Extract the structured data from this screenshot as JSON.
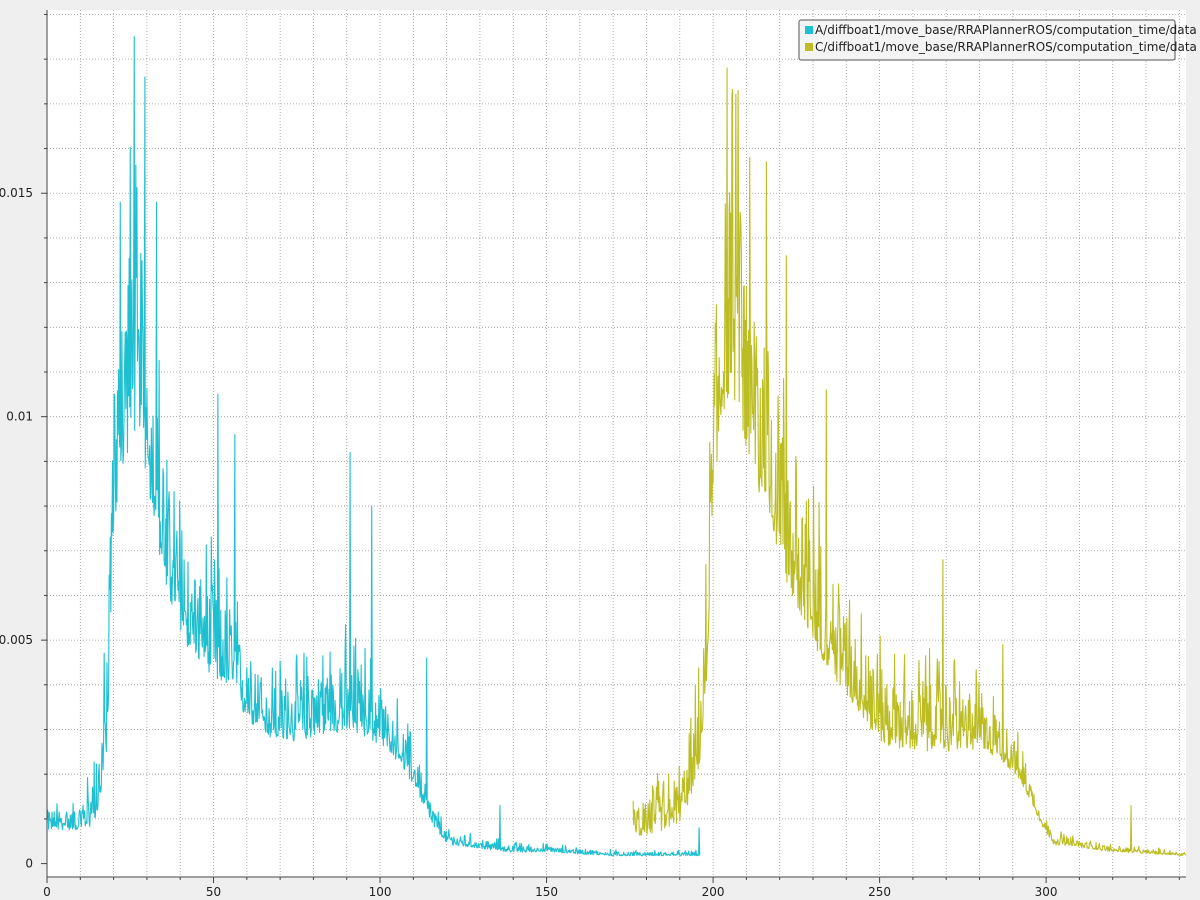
{
  "chart_data": {
    "type": "line",
    "title": "",
    "xlabel": "",
    "ylabel": "",
    "xlim": [
      0,
      342
    ],
    "ylim": [
      -0.0003,
      0.0191
    ],
    "grid": true,
    "legend_position": "top-right",
    "x_ticks": [
      0,
      50,
      100,
      150,
      200,
      250,
      300
    ],
    "x_tick_labels": [
      "0",
      "50",
      "100",
      "150",
      "200",
      "250",
      "300"
    ],
    "y_ticks": [
      0,
      0.005,
      0.01,
      0.015
    ],
    "y_tick_labels": [
      "0",
      "0.005",
      "0.01",
      "0.015"
    ],
    "series": [
      {
        "name": "A/diffboat1/move_base/RRAPlannerROS/computation_time/data",
        "color": "#1dbfd0",
        "envelope": {
          "x": [
            0,
            5,
            10,
            13,
            16,
            18,
            20,
            22,
            25,
            27,
            30,
            33,
            36,
            40,
            45,
            50,
            55,
            60,
            65,
            70,
            75,
            80,
            85,
            90,
            95,
            100,
            105,
            110,
            115,
            120,
            130,
            140,
            150,
            160,
            170,
            180,
            190,
            196
          ],
          "base": [
            0.0009,
            0.0009,
            0.0009,
            0.0011,
            0.0017,
            0.0032,
            0.0085,
            0.0095,
            0.011,
            0.011,
            0.0095,
            0.0082,
            0.0068,
            0.0058,
            0.0052,
            0.0048,
            0.0043,
            0.0037,
            0.0033,
            0.0031,
            0.0031,
            0.0033,
            0.0034,
            0.0034,
            0.0033,
            0.003,
            0.0026,
            0.002,
            0.0011,
            0.0005,
            0.0004,
            0.0003,
            0.0003,
            0.00025,
            0.0002,
            0.0002,
            0.0002,
            0.0002
          ],
          "amp": [
            0.0006,
            0.0006,
            0.0006,
            0.0012,
            0.0018,
            0.0025,
            0.004,
            0.0045,
            0.006,
            0.005,
            0.004,
            0.004,
            0.003,
            0.003,
            0.0025,
            0.0025,
            0.0022,
            0.002,
            0.0018,
            0.0016,
            0.0016,
            0.0018,
            0.002,
            0.002,
            0.0018,
            0.0015,
            0.0012,
            0.0009,
            0.0006,
            0.0003,
            0.00025,
            0.0002,
            0.00015,
            0.00015,
            0.00012,
            0.0001,
            0.0001,
            0.0001
          ]
        },
        "peaks": [
          {
            "x": 26.2,
            "y": 0.0185
          },
          {
            "x": 29.4,
            "y": 0.0176
          },
          {
            "x": 32.9,
            "y": 0.0148
          },
          {
            "x": 22.0,
            "y": 0.0148
          },
          {
            "x": 51.3,
            "y": 0.0105
          },
          {
            "x": 56.4,
            "y": 0.0096
          },
          {
            "x": 91.0,
            "y": 0.0092
          },
          {
            "x": 97.5,
            "y": 0.008
          },
          {
            "x": 114.0,
            "y": 0.0046
          },
          {
            "x": 136.0,
            "y": 0.0013
          },
          {
            "x": 195.8,
            "y": 0.0008
          }
        ]
      },
      {
        "name": "C/diffboat1/move_base/RRAPlannerROS/computation_time/data",
        "color": "#bcbd22",
        "envelope": {
          "x": [
            176,
            180,
            185,
            190,
            193,
            196,
            198,
            200,
            202,
            205,
            208,
            210,
            215,
            220,
            225,
            230,
            235,
            240,
            245,
            250,
            255,
            260,
            265,
            270,
            275,
            280,
            285,
            290,
            295,
            299,
            302,
            310,
            320,
            330,
            342
          ],
          "base": [
            0.0008,
            0.0009,
            0.001,
            0.0012,
            0.0018,
            0.0026,
            0.0045,
            0.009,
            0.011,
            0.012,
            0.0115,
            0.0105,
            0.009,
            0.0078,
            0.0065,
            0.0056,
            0.005,
            0.0044,
            0.0038,
            0.0032,
            0.003,
            0.003,
            0.003,
            0.003,
            0.003,
            0.0029,
            0.0027,
            0.0023,
            0.0016,
            0.0009,
            0.0005,
            0.0004,
            0.0003,
            0.00025,
            0.0002
          ],
          "amp": [
            0.0008,
            0.001,
            0.0012,
            0.0012,
            0.0015,
            0.002,
            0.0025,
            0.004,
            0.0055,
            0.006,
            0.0055,
            0.005,
            0.0045,
            0.004,
            0.0035,
            0.003,
            0.0028,
            0.0025,
            0.0022,
            0.002,
            0.0018,
            0.0018,
            0.002,
            0.002,
            0.0018,
            0.0015,
            0.0012,
            0.001,
            0.0006,
            0.0004,
            0.0003,
            0.0002,
            0.00015,
            0.00012,
            0.0001
          ]
        },
        "peaks": [
          {
            "x": 204.2,
            "y": 0.0178
          },
          {
            "x": 207.5,
            "y": 0.0173
          },
          {
            "x": 211.0,
            "y": 0.0158
          },
          {
            "x": 216.0,
            "y": 0.0157
          },
          {
            "x": 222.0,
            "y": 0.0136
          },
          {
            "x": 234.0,
            "y": 0.0106
          },
          {
            "x": 269.0,
            "y": 0.0068
          },
          {
            "x": 287.0,
            "y": 0.0049
          },
          {
            "x": 325.5,
            "y": 0.0013
          }
        ]
      }
    ]
  }
}
